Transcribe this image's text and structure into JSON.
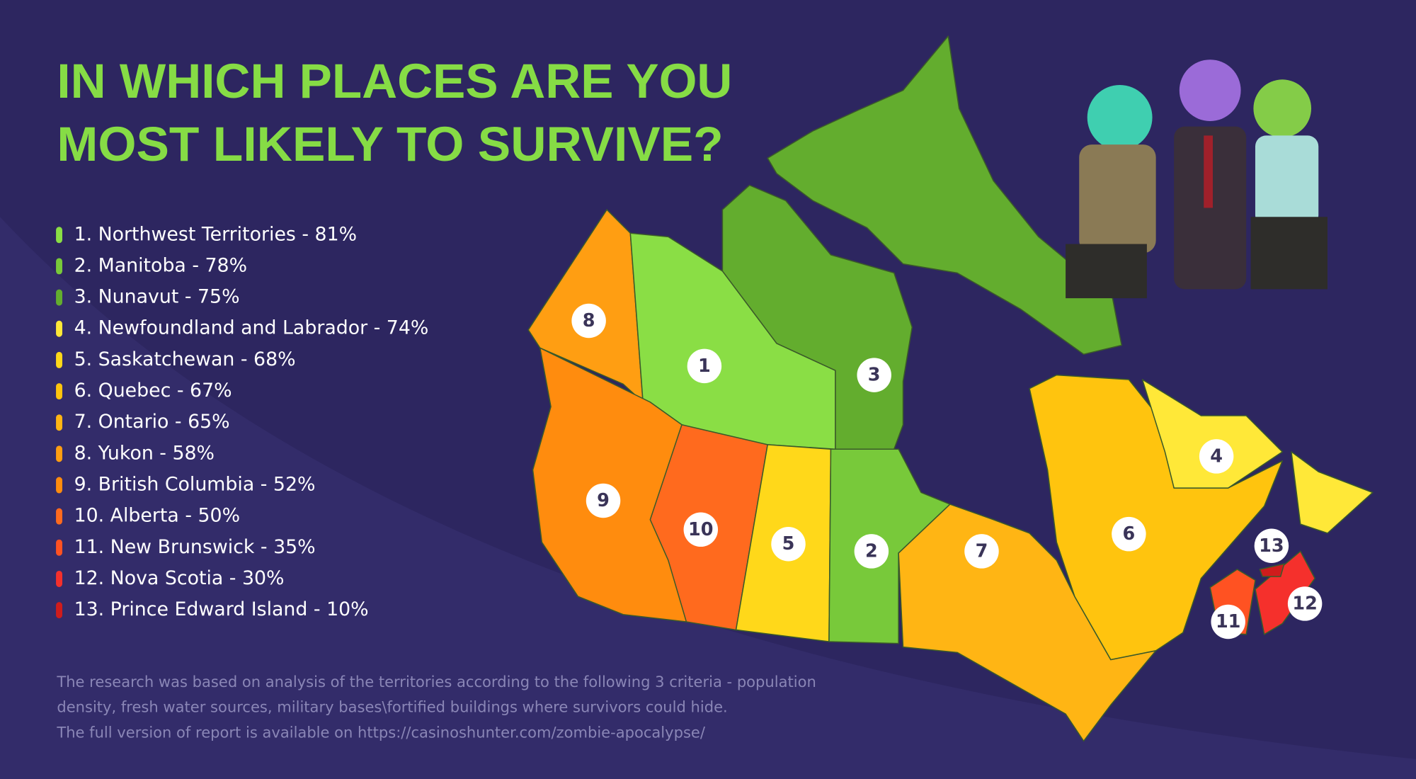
{
  "title": [
    "IN WHICH PLACES ARE YOU",
    "MOST LIKELY TO SURVIVE?"
  ],
  "items": [
    {
      "label": "1. Northwest Territories - 81%",
      "marker": "1",
      "color": "#8ade45"
    },
    {
      "label": "2. Manitoba - 78%",
      "marker": "2",
      "color": "#78c93a"
    },
    {
      "label": "3. Nunavut - 75%",
      "marker": "3",
      "color": "#63ad2e"
    },
    {
      "label": "4. Newfoundland and Labrador - 74%",
      "marker": "4",
      "color": "#ffe838"
    },
    {
      "label": "5. Saskatchewan - 68%",
      "marker": "5",
      "color": "#ffd81a"
    },
    {
      "label": "6. Quebec - 67%",
      "marker": "6",
      "color": "#ffc40e"
    },
    {
      "label": "7. Ontario - 65%",
      "marker": "7",
      "color": "#ffb514"
    },
    {
      "label": "8. Yukon - 58%",
      "marker": "8",
      "color": "#ff9e12"
    },
    {
      "label": "9. British Columbia - 52%",
      "marker": "9",
      "color": "#ff8c0e"
    },
    {
      "label": "10. Alberta - 50%",
      "marker": "10",
      "color": "#ff6a1e"
    },
    {
      "label": "11. New Brunswick - 35%",
      "marker": "11",
      "color": "#ff5222"
    },
    {
      "label": "12. Nova Scotia - 30%",
      "marker": "12",
      "color": "#f5302c"
    },
    {
      "label": "13. Prince Edward Island - 10%",
      "marker": "13",
      "color": "#cf1c1c"
    }
  ],
  "note": [
    "The research was based on analysis of the territories according to the following 3 criteria - population",
    "density, fresh water sources, military bases\\fortified buildings where survivors could hide.",
    "The full version of report is available on https://casinoshunter.com/zombie-apocalypse/"
  ]
}
